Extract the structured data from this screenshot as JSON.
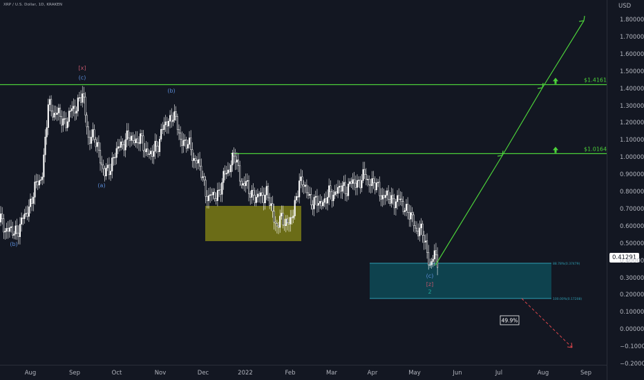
{
  "symbol": {
    "title": "XRP / U.S. Dollar, 1D, KRAKEN"
  },
  "price_axis": {
    "currency": "USD",
    "ticks": [
      "1.80000",
      "1.70000",
      "1.60000",
      "1.50000",
      "1.40000",
      "1.30000",
      "1.20000",
      "1.10000",
      "1.00000",
      "0.90000",
      "0.80000",
      "0.70000",
      "0.60000",
      "0.50000",
      "0.40000",
      "0.30000",
      "0.20000",
      "0.10000",
      "0.00000",
      "−0.10000",
      "−0.20000"
    ],
    "current_price": "0.41291"
  },
  "time_axis": {
    "labels": [
      "Aug",
      "Sep",
      "Oct",
      "Nov",
      "Dec",
      "2022",
      "Feb",
      "Mar",
      "Apr",
      "May",
      "Jun",
      "Jul",
      "Aug",
      "Sep"
    ]
  },
  "levels": {
    "upper": {
      "label": "$1.4161",
      "price": 1.4161
    },
    "lower": {
      "label": "$1.0164",
      "price": 1.0164
    }
  },
  "zone": {
    "top_label": "88.78%(0.37479)",
    "bottom_label": "100.00%(0.17208)"
  },
  "wave_labels": [
    {
      "id": "b-jul",
      "text": "(b)",
      "color": "#5b8dd9"
    },
    {
      "id": "x-sep",
      "text": "[x]",
      "color": "#c0566b"
    },
    {
      "id": "c-sep",
      "text": "(c)",
      "color": "#5b8dd9"
    },
    {
      "id": "a-sep",
      "text": "(a)",
      "color": "#5b8dd9"
    },
    {
      "id": "b-nov",
      "text": "(b)",
      "color": "#5b8dd9"
    },
    {
      "id": "c-may",
      "text": "(c)",
      "color": "#5b8dd9"
    },
    {
      "id": "z-may",
      "text": "[z]",
      "color": "#c0566b"
    },
    {
      "id": "two-may",
      "text": "2",
      "color": "#26a69a"
    }
  ],
  "percent_badge": "49.9%",
  "colors": {
    "background": "#131722",
    "green_line": "#4cd13a",
    "yellow_zone": "#8a8a14",
    "cyan_zone": "#0e4a56",
    "cyan_border": "#2fa0b5",
    "red_dashed": "#e0474c",
    "candles": "#ffffff"
  }
}
